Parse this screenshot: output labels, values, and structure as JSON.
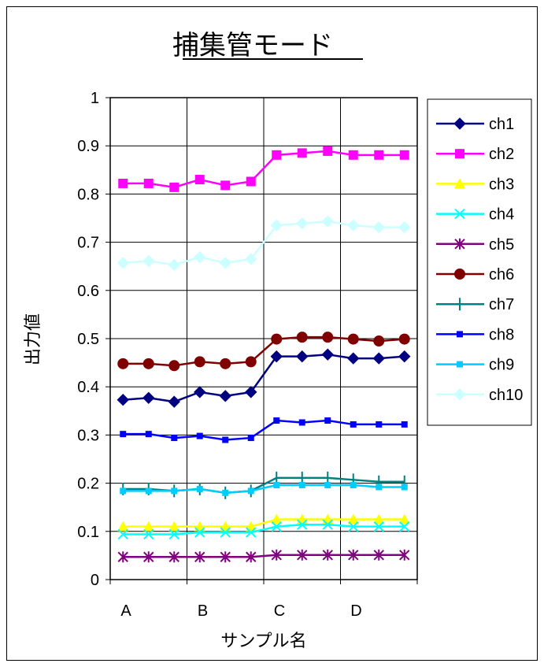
{
  "chart_data": {
    "type": "line",
    "title": "捕集管モード",
    "xlabel": "サンプル名",
    "ylabel": "出力値",
    "ylim": [
      0,
      1
    ],
    "y_ticks": [
      "0",
      "0.1",
      "0.2",
      "0.3",
      "0.4",
      "0.5",
      "0.6",
      "0.7",
      "0.8",
      "0.9",
      "1"
    ],
    "x_tick_labels": [
      "A",
      "B",
      "C",
      "D"
    ],
    "n_points": 12,
    "grid": true,
    "legend_position": "right",
    "series": [
      {
        "name": "ch1",
        "color": "#000080",
        "marker": "diamond",
        "values": [
          0.373,
          0.377,
          0.369,
          0.389,
          0.381,
          0.389,
          0.463,
          0.463,
          0.467,
          0.459,
          0.459,
          0.463
        ]
      },
      {
        "name": "ch2",
        "color": "#FF00FF",
        "marker": "square",
        "values": [
          0.822,
          0.822,
          0.814,
          0.83,
          0.818,
          0.826,
          0.881,
          0.885,
          0.889,
          0.881,
          0.881,
          0.881
        ]
      },
      {
        "name": "ch3",
        "color": "#FFFF00",
        "marker": "triangle",
        "values": [
          0.11,
          0.11,
          0.11,
          0.11,
          0.11,
          0.11,
          0.125,
          0.125,
          0.125,
          0.125,
          0.125,
          0.125
        ]
      },
      {
        "name": "ch4",
        "color": "#00FFFF",
        "marker": "x",
        "values": [
          0.094,
          0.094,
          0.094,
          0.098,
          0.098,
          0.098,
          0.11,
          0.114,
          0.114,
          0.11,
          0.11,
          0.11
        ]
      },
      {
        "name": "ch5",
        "color": "#800080",
        "marker": "star",
        "values": [
          0.047,
          0.047,
          0.047,
          0.047,
          0.047,
          0.047,
          0.051,
          0.051,
          0.051,
          0.051,
          0.051,
          0.051
        ]
      },
      {
        "name": "ch6",
        "color": "#800000",
        "marker": "circle",
        "values": [
          0.448,
          0.448,
          0.444,
          0.452,
          0.448,
          0.452,
          0.499,
          0.503,
          0.503,
          0.499,
          0.495,
          0.499
        ]
      },
      {
        "name": "ch7",
        "color": "#008080",
        "marker": "plus",
        "values": [
          0.188,
          0.188,
          0.184,
          0.188,
          0.18,
          0.184,
          0.211,
          0.211,
          0.211,
          0.207,
          0.203,
          0.203
        ]
      },
      {
        "name": "ch8",
        "color": "#0000FF",
        "marker": "smallsquare",
        "values": [
          0.302,
          0.302,
          0.294,
          0.298,
          0.29,
          0.294,
          0.33,
          0.326,
          0.33,
          0.322,
          0.322,
          0.322
        ]
      },
      {
        "name": "ch9",
        "color": "#00CCFF",
        "marker": "smallsquare",
        "values": [
          0.184,
          0.184,
          0.184,
          0.188,
          0.18,
          0.184,
          0.196,
          0.196,
          0.196,
          0.196,
          0.192,
          0.192
        ]
      },
      {
        "name": "ch10",
        "color": "#CCFFFF",
        "marker": "diamond",
        "values": [
          0.657,
          0.661,
          0.653,
          0.669,
          0.657,
          0.665,
          0.735,
          0.739,
          0.743,
          0.735,
          0.731,
          0.731
        ]
      }
    ]
  }
}
